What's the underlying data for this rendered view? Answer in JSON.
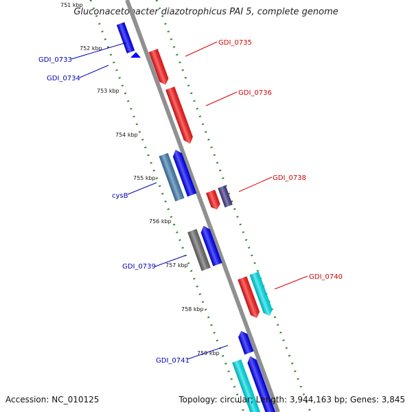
{
  "title": "Gluconacetobacter diazotrophicus PAI 5, complete genome",
  "footer": {
    "accession": "Accession: NC_010125",
    "summary": "Topology: circular; Length: 3,944,163 bp; Genes: 3,845"
  },
  "colors": {
    "backbone": "#909090",
    "tick_dashes": "#2e8b2e",
    "label_forward": "#d40000",
    "label_reverse": "#0000b4",
    "gene_red": "#ff1a1a",
    "gene_blue": "#0000ff",
    "gene_steelblue": "#4682b4",
    "gene_cyan": "#00e5ee",
    "gene_gray": "#6e6e6e",
    "gene_slate": "#483d8b"
  },
  "kbp_labels": [
    "751 kbp",
    "752 kbp",
    "753 kbp",
    "754 kbp",
    "755 kbp",
    "756 kbp",
    "757 kbp",
    "758 kbp",
    "759 kbp"
  ],
  "gene_labels": {
    "forward": [
      "GDI_0735",
      "GDI_0736",
      "GDI_0738",
      "GDI_0740"
    ],
    "reverse": [
      "GDI_0733",
      "GDI_0734",
      "cysB",
      "GDI_0739",
      "GDI_0741"
    ]
  }
}
